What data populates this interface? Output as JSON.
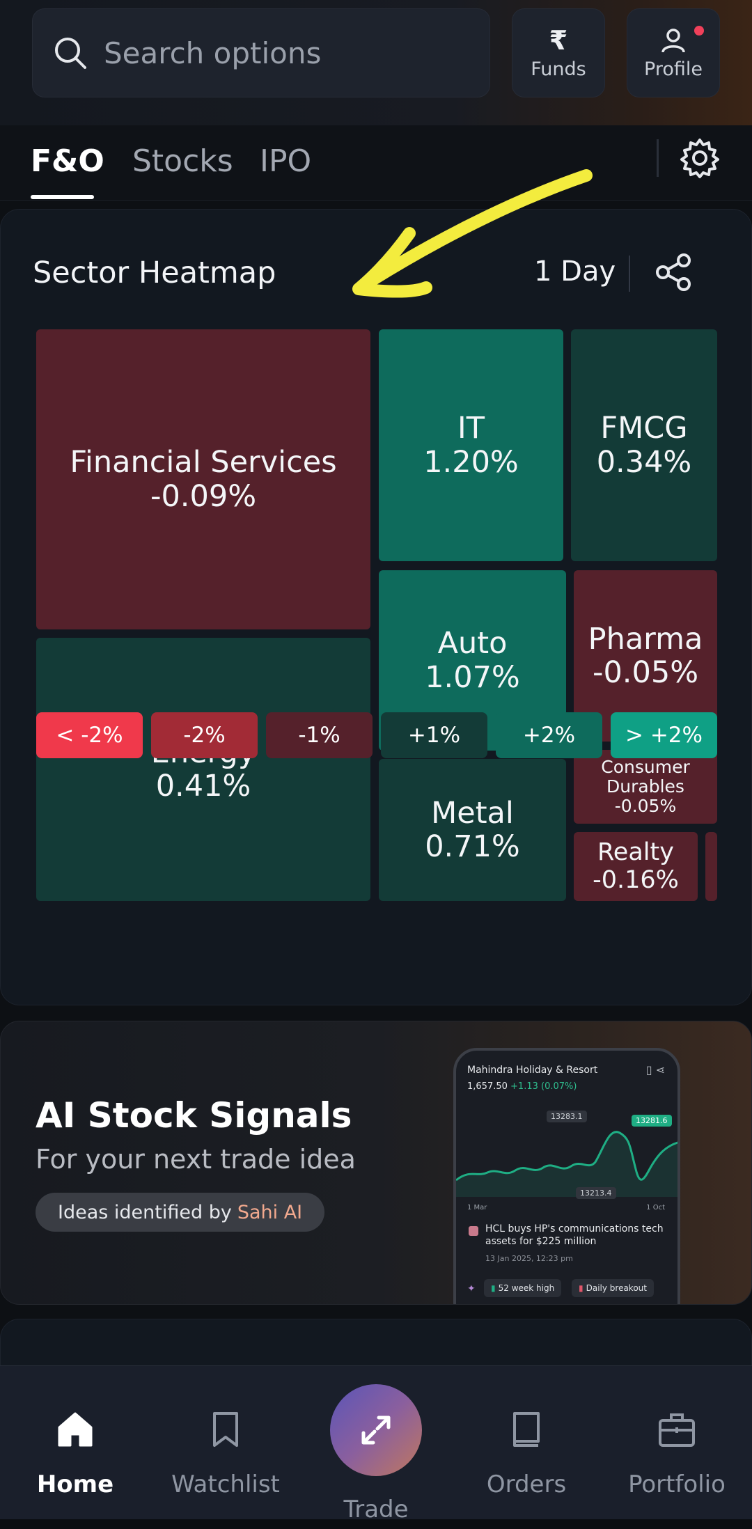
{
  "search": {
    "placeholder": "Search options"
  },
  "top_buttons": {
    "funds": "Funds",
    "profile": "Profile",
    "funds_symbol": "₹"
  },
  "tabs": [
    {
      "label": "F&O",
      "active": true
    },
    {
      "label": "Stocks"
    },
    {
      "label": "IPO"
    }
  ],
  "heatmap": {
    "title": "Sector Heatmap",
    "period": "1 Day",
    "tiles": [
      {
        "name": "Financial Services",
        "value": "-0.09%"
      },
      {
        "name": "Energy",
        "value": "0.41%"
      },
      {
        "name": "IT",
        "value": "1.20%"
      },
      {
        "name": "FMCG",
        "value": "0.34%"
      },
      {
        "name": "Auto",
        "value": "1.07%"
      },
      {
        "name": "Pharma",
        "value": "-0.05%"
      },
      {
        "name": "Metal",
        "value": "0.71%"
      },
      {
        "name": "Consumer Durables",
        "value": "-0.05%"
      },
      {
        "name": "Realty",
        "value": "-0.16%"
      }
    ],
    "legend": [
      "< -2%",
      "-2%",
      "-1%",
      "+1%",
      "+2%",
      "> +2%"
    ],
    "colors": {
      "negative": "#55212b",
      "positive_dark": "#133b37",
      "positive_mid": "#0e6b5c",
      "legend": [
        "#f0394b",
        "#a22b36",
        "#55212b",
        "#133b37",
        "#0e6b5c",
        "#0fa085"
      ]
    }
  },
  "promo": {
    "title": "AI Stock Signals",
    "subtitle": "For your next trade idea",
    "pill_prefix": "Ideas identified by",
    "pill_highlight": "Sahi AI",
    "phone": {
      "stock": "Mahindra Holiday & Resort",
      "price": "1,657.50",
      "change": "+1.13 (0.07%)",
      "tag_high": "13283.1",
      "tag_current": "13281.6",
      "tag_low": "13213.4",
      "axis_start": "1 Mar",
      "axis_end": "1 Oct",
      "news": "HCL buys HP's communications tech assets for $225 million",
      "news_date": "13 Jan 2025, 12:23 pm",
      "chip1": "52 week high",
      "chip2": "Daily breakout"
    }
  },
  "bottom_nav": [
    {
      "label": "Home",
      "icon": "home-icon",
      "active": true
    },
    {
      "label": "Watchlist",
      "icon": "bookmark-icon"
    },
    {
      "label": "Trade",
      "icon": "swap-arrows-icon"
    },
    {
      "label": "Orders",
      "icon": "book-icon"
    },
    {
      "label": "Portfolio",
      "icon": "briefcase-icon"
    }
  ]
}
